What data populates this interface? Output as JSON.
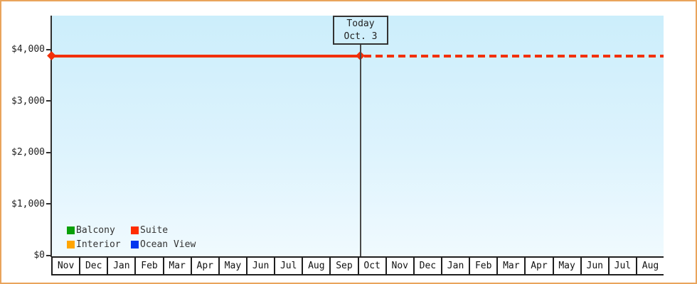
{
  "frame": {
    "border_color": "#e9a45c",
    "background": "#ffffff"
  },
  "chart_data": {
    "type": "line",
    "title": "",
    "x_categories": [
      "Nov",
      "Dec",
      "Jan",
      "Feb",
      "Mar",
      "Apr",
      "May",
      "Jun",
      "Jul",
      "Aug",
      "Sep",
      "Oct",
      "Nov",
      "Dec",
      "Jan",
      "Feb",
      "Mar",
      "Apr",
      "May",
      "Jun",
      "Jul",
      "Aug"
    ],
    "y_tick_labels_top_to_bottom": [
      "$4,000",
      "$3,000",
      "$2,000",
      "$1,000",
      "$0"
    ],
    "y_tick_values": [
      4000,
      3000,
      2000,
      1000,
      0
    ],
    "ylim": [
      0,
      4700
    ],
    "grid": false,
    "legend_position": "bottom-left-inside",
    "series": [
      {
        "name": "Balcony",
        "color": "#08a008",
        "values": []
      },
      {
        "name": "Suite",
        "color": "#f23008",
        "values": [
          3880,
          3880,
          3880,
          3880,
          3880,
          3880,
          3880,
          3880,
          3880,
          3880,
          3880,
          3880,
          3880,
          3880,
          3880,
          3880,
          3880,
          3880,
          3880,
          3880,
          3880,
          3880
        ],
        "solid_until": "Oct 3 (today)",
        "dashed_after_today": true,
        "start_marker": "diamond",
        "today_marker": "diamond"
      },
      {
        "name": "Interior",
        "color": "#ffa500",
        "values": []
      },
      {
        "name": "Ocean View",
        "color": "#0435ef",
        "values": []
      }
    ],
    "annotation": {
      "line1": "Today",
      "line2": "Oct. 3"
    }
  },
  "y_axis": {
    "labels": [
      "$4,000",
      "$3,000",
      "$2,000",
      "$1,000",
      "$0"
    ]
  },
  "legend": {
    "items": [
      {
        "label": "Balcony",
        "color": "#08a008"
      },
      {
        "label": "Suite",
        "color": "#ff2d00"
      },
      {
        "label": "Interior",
        "color": "#ffa500"
      },
      {
        "label": "Ocean View",
        "color": "#0435ef"
      }
    ]
  }
}
